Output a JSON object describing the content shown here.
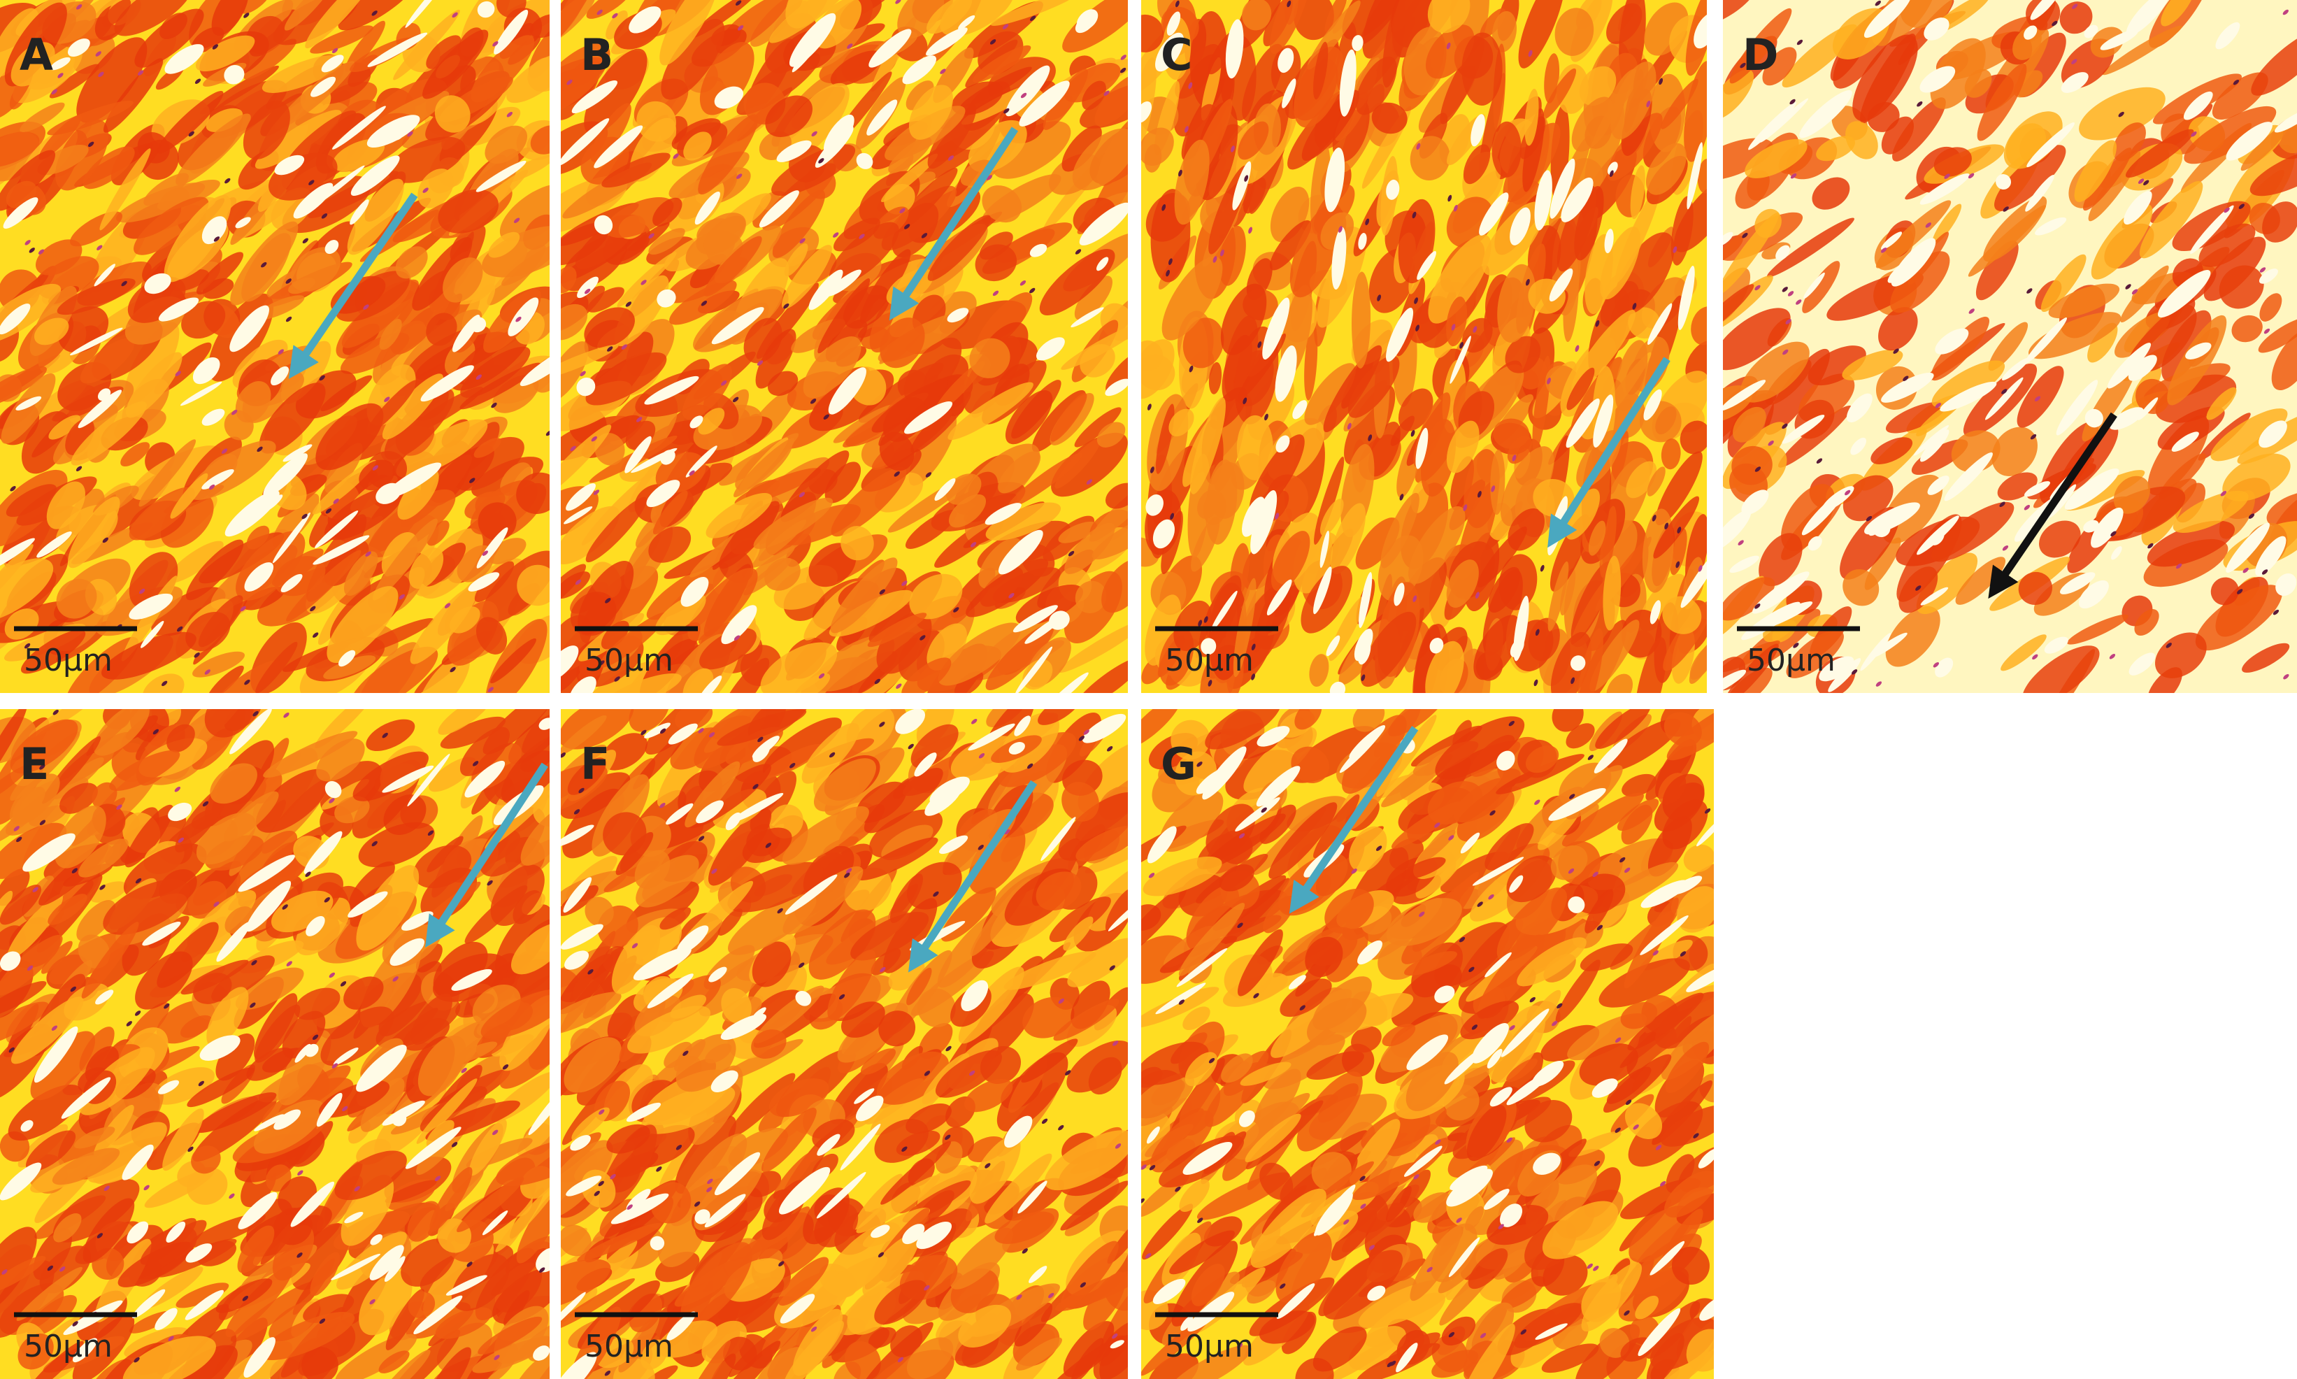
{
  "panels": [
    {
      "label": "A",
      "scale_bar": "50μm"
    },
    {
      "label": "B",
      "scale_bar": "50μm"
    },
    {
      "label": "C",
      "scale_bar": "50μm"
    },
    {
      "label": "D",
      "scale_bar": "50μm"
    },
    {
      "label": "E",
      "scale_bar": "50μm"
    },
    {
      "label": "F",
      "scale_bar": "50μm"
    },
    {
      "label": "G",
      "scale_bar": "50μm"
    }
  ]
}
